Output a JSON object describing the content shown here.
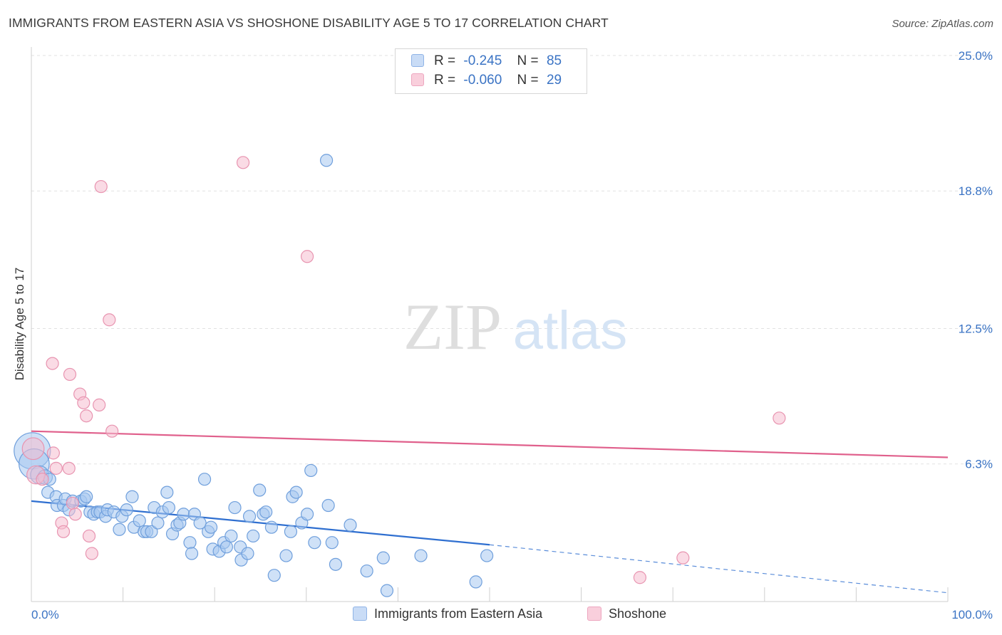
{
  "header": {
    "title": "IMMIGRANTS FROM EASTERN ASIA VS SHOSHONE DISABILITY AGE 5 TO 17 CORRELATION CHART",
    "source": "Source: ZipAtlas.com"
  },
  "legend": {
    "r_label": "R =",
    "n_label": "N =",
    "rows": [
      {
        "r": "-0.245",
        "n": "85",
        "color": "#a8c8f0"
      },
      {
        "r": "-0.060",
        "n": "29",
        "color": "#f4b8cc"
      }
    ]
  },
  "watermark": {
    "zip": "ZIP",
    "atlas": "atlas"
  },
  "colors": {
    "series1_fill": "#a8c8f0",
    "series1_stroke": "#6f9fdc",
    "series1_line": "#2f6fd0",
    "series2_fill": "#f6bdd0",
    "series2_stroke": "#e894b0",
    "series2_line": "#e0608c",
    "tick_label": "#3a73c4"
  },
  "chart_data": {
    "type": "scatter",
    "title": "IMMIGRANTS FROM EASTERN ASIA VS SHOSHONE DISABILITY AGE 5 TO 17 CORRELATION CHART",
    "xlabel": "",
    "ylabel": "Disability Age 5 to 17",
    "xlim": [
      0,
      100
    ],
    "ylim": [
      0,
      25
    ],
    "x_tick_labels": [
      "0.0%",
      "100.0%"
    ],
    "y_ticks": [
      6.3,
      12.5,
      18.8,
      25.0
    ],
    "y_tick_labels": [
      "6.3%",
      "12.5%",
      "18.8%",
      "25.0%"
    ],
    "grid": true,
    "legend_position": "top-center",
    "series": [
      {
        "name": "Immigrants from Eastern Asia",
        "r": -0.245,
        "n": 85,
        "trend": {
          "x0": 0,
          "y0": 4.6,
          "x1": 50,
          "y1": 2.6,
          "dashed_to_x": 100,
          "dashed_to_y": 0.4
        },
        "points": [
          [
            0.1,
            6.9,
            3
          ],
          [
            0.3,
            6.3,
            2.5
          ],
          [
            0.9,
            5.8,
            1.5
          ],
          [
            1.5,
            5.7,
            1.2
          ],
          [
            2.0,
            5.6,
            1
          ],
          [
            1.8,
            5.0,
            1
          ],
          [
            2.7,
            4.8,
            1
          ],
          [
            2.8,
            4.4,
            1
          ],
          [
            3.5,
            4.4,
            1
          ],
          [
            3.7,
            4.7,
            1
          ],
          [
            4.1,
            4.2,
            1
          ],
          [
            4.5,
            4.6,
            1
          ],
          [
            5.4,
            4.6,
            1
          ],
          [
            5.8,
            4.7,
            1
          ],
          [
            6.0,
            4.8,
            1
          ],
          [
            6.4,
            4.1,
            1
          ],
          [
            6.8,
            4.0,
            1
          ],
          [
            7.2,
            4.1,
            1
          ],
          [
            7.5,
            4.1,
            1
          ],
          [
            8.1,
            3.9,
            1
          ],
          [
            8.3,
            4.2,
            1
          ],
          [
            9.0,
            4.1,
            1
          ],
          [
            9.6,
            3.3,
            1
          ],
          [
            9.9,
            3.9,
            1
          ],
          [
            10.4,
            4.2,
            1
          ],
          [
            11.0,
            4.8,
            1
          ],
          [
            11.2,
            3.4,
            1
          ],
          [
            11.8,
            3.7,
            1
          ],
          [
            12.3,
            3.2,
            1
          ],
          [
            12.6,
            3.2,
            1
          ],
          [
            13.1,
            3.2,
            1
          ],
          [
            13.4,
            4.3,
            1
          ],
          [
            13.8,
            3.6,
            1
          ],
          [
            14.3,
            4.1,
            1
          ],
          [
            14.8,
            5.0,
            1
          ],
          [
            15.0,
            4.3,
            1
          ],
          [
            15.4,
            3.1,
            1
          ],
          [
            15.9,
            3.5,
            1
          ],
          [
            16.2,
            3.6,
            1
          ],
          [
            16.6,
            4.0,
            1
          ],
          [
            17.3,
            2.7,
            1
          ],
          [
            17.5,
            2.2,
            1
          ],
          [
            17.8,
            4.0,
            1
          ],
          [
            18.4,
            3.6,
            1
          ],
          [
            18.9,
            5.6,
            1
          ],
          [
            19.3,
            3.2,
            1
          ],
          [
            19.6,
            3.4,
            1
          ],
          [
            19.8,
            2.4,
            1
          ],
          [
            20.5,
            2.3,
            1
          ],
          [
            21.0,
            2.7,
            1
          ],
          [
            21.3,
            2.5,
            1
          ],
          [
            21.8,
            3.0,
            1
          ],
          [
            22.2,
            4.3,
            1
          ],
          [
            22.8,
            2.5,
            1
          ],
          [
            22.9,
            1.9,
            1
          ],
          [
            23.6,
            2.2,
            1
          ],
          [
            23.8,
            3.9,
            1
          ],
          [
            24.2,
            3.0,
            1
          ],
          [
            24.9,
            5.1,
            1
          ],
          [
            25.3,
            4.0,
            1
          ],
          [
            25.6,
            4.1,
            1
          ],
          [
            26.2,
            3.4,
            1
          ],
          [
            26.5,
            1.2,
            1
          ],
          [
            27.8,
            2.1,
            1
          ],
          [
            28.3,
            3.2,
            1
          ],
          [
            28.5,
            4.8,
            1
          ],
          [
            28.9,
            5.0,
            1
          ],
          [
            29.5,
            3.6,
            1
          ],
          [
            30.1,
            4.0,
            1
          ],
          [
            30.5,
            6.0,
            1
          ],
          [
            30.9,
            2.7,
            1
          ],
          [
            32.2,
            20.2,
            1
          ],
          [
            32.4,
            4.4,
            1
          ],
          [
            32.8,
            2.7,
            1
          ],
          [
            33.2,
            1.7,
            1
          ],
          [
            34.8,
            3.5,
            1
          ],
          [
            36.6,
            1.4,
            1
          ],
          [
            38.4,
            2.0,
            1
          ],
          [
            38.8,
            0.5,
            1
          ],
          [
            42.5,
            2.1,
            1
          ],
          [
            48.5,
            0.9,
            1
          ],
          [
            49.7,
            2.1,
            1
          ]
        ]
      },
      {
        "name": "Shoshone",
        "r": -0.06,
        "n": 29,
        "trend": {
          "x0": 0,
          "y0": 7.8,
          "x1": 100,
          "y1": 6.6
        },
        "points": [
          [
            0.2,
            7.0,
            1.8
          ],
          [
            0.5,
            5.8,
            1.5
          ],
          [
            1.2,
            5.6,
            1
          ],
          [
            2.3,
            10.9,
            1
          ],
          [
            2.4,
            6.8,
            1
          ],
          [
            2.7,
            6.1,
            1
          ],
          [
            3.3,
            3.6,
            1
          ],
          [
            3.5,
            3.2,
            1
          ],
          [
            4.1,
            6.1,
            1
          ],
          [
            4.2,
            10.4,
            1
          ],
          [
            4.5,
            4.5,
            1
          ],
          [
            4.8,
            4.0,
            1
          ],
          [
            5.3,
            9.5,
            1
          ],
          [
            5.7,
            9.1,
            1
          ],
          [
            6.0,
            8.5,
            1
          ],
          [
            6.3,
            3.0,
            1
          ],
          [
            6.6,
            2.2,
            1
          ],
          [
            7.4,
            9.0,
            1
          ],
          [
            7.6,
            19.0,
            1
          ],
          [
            8.5,
            12.9,
            1
          ],
          [
            8.8,
            7.8,
            1
          ],
          [
            23.1,
            20.1,
            1
          ],
          [
            30.1,
            15.8,
            1
          ],
          [
            66.4,
            1.1,
            1
          ],
          [
            71.1,
            2.0,
            1
          ],
          [
            81.6,
            8.4,
            1
          ]
        ]
      }
    ]
  },
  "bottom_legend": [
    {
      "label": "Immigrants from Eastern Asia"
    },
    {
      "label": "Shoshone"
    }
  ]
}
